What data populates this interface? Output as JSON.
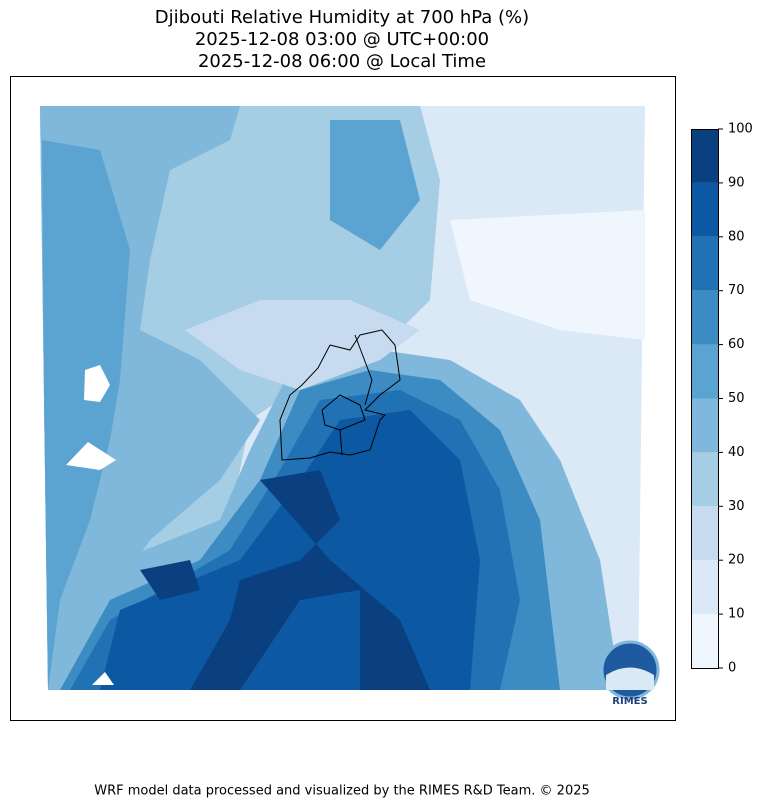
{
  "header": {
    "title_lines": [
      "Djibouti Relative Humidity at 700 hPa (%)",
      "2025-12-08 03:00 @ UTC+00:00",
      "2025-12-08 06:00 @ Local Time"
    ]
  },
  "colorbar": {
    "ticks": [
      0,
      10,
      20,
      30,
      40,
      50,
      60,
      70,
      80,
      90,
      100
    ],
    "colors": [
      "#f0f6fd",
      "#dbe9f6",
      "#c6dbef",
      "#a5cde3",
      "#7fb8da",
      "#5ba3d0",
      "#3c8bc3",
      "#2171b5",
      "#0d58a2",
      "#0a3f80"
    ]
  },
  "logo": {
    "text": "RIMES"
  },
  "footer": {
    "text": "WRF model data processed and visualized by the RIMES R&D Team. © 2025"
  }
}
